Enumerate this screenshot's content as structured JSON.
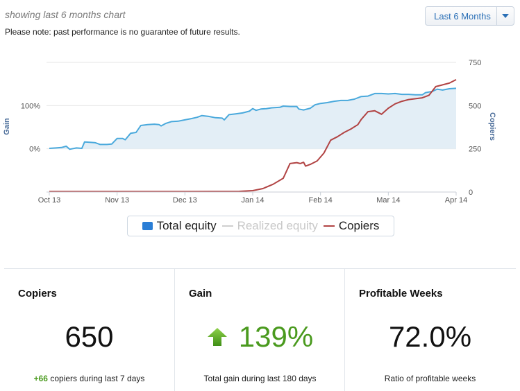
{
  "header": {
    "title": "showing last 6 months chart",
    "note": "Please note: past performance is no guarantee of future results.",
    "range_select": {
      "selected": "Last 6 Months"
    }
  },
  "chart_data": {
    "type": "line",
    "x_ticks": [
      "Oct 13",
      "Nov 13",
      "Dec 13",
      "Jan 14",
      "Feb 14",
      "Mar 14",
      "Apr 14"
    ],
    "x_range": [
      0,
      6
    ],
    "left_axis": {
      "label": "Gain",
      "ticks": [
        "0%",
        "100%"
      ],
      "range": [
        -100,
        200
      ],
      "unit": "%"
    },
    "right_axis": {
      "label": "Copiers",
      "ticks": [
        "0",
        "250",
        "500",
        "750"
      ],
      "range": [
        0,
        750
      ]
    },
    "grid": true,
    "legend": "bottom-center",
    "series": [
      {
        "name": "Total equity",
        "axis": "left",
        "style": "area",
        "color": "#4aa9dc",
        "fill": "#e3eef6",
        "points": [
          [
            0.0,
            1
          ],
          [
            0.1,
            2
          ],
          [
            0.18,
            3
          ],
          [
            0.25,
            6
          ],
          [
            0.3,
            -1
          ],
          [
            0.4,
            2
          ],
          [
            0.48,
            1
          ],
          [
            0.52,
            16
          ],
          [
            0.6,
            15
          ],
          [
            0.68,
            14
          ],
          [
            0.75,
            10
          ],
          [
            0.85,
            10
          ],
          [
            0.92,
            11
          ],
          [
            1.0,
            24
          ],
          [
            1.08,
            24
          ],
          [
            1.12,
            21
          ],
          [
            1.2,
            36
          ],
          [
            1.28,
            38
          ],
          [
            1.35,
            54
          ],
          [
            1.45,
            56
          ],
          [
            1.55,
            57
          ],
          [
            1.62,
            56
          ],
          [
            1.65,
            53
          ],
          [
            1.72,
            59
          ],
          [
            1.8,
            63
          ],
          [
            1.9,
            64
          ],
          [
            2.0,
            67
          ],
          [
            2.1,
            70
          ],
          [
            2.18,
            73
          ],
          [
            2.25,
            77
          ],
          [
            2.35,
            75
          ],
          [
            2.45,
            72
          ],
          [
            2.55,
            71
          ],
          [
            2.58,
            67
          ],
          [
            2.65,
            79
          ],
          [
            2.75,
            81
          ],
          [
            2.85,
            83
          ],
          [
            2.95,
            87
          ],
          [
            3.0,
            93
          ],
          [
            3.05,
            89
          ],
          [
            3.12,
            92
          ],
          [
            3.2,
            93
          ],
          [
            3.28,
            95
          ],
          [
            3.4,
            96
          ],
          [
            3.45,
            99
          ],
          [
            3.55,
            98
          ],
          [
            3.65,
            98
          ],
          [
            3.68,
            92
          ],
          [
            3.75,
            90
          ],
          [
            3.85,
            94
          ],
          [
            3.92,
            102
          ],
          [
            4.0,
            105
          ],
          [
            4.1,
            107
          ],
          [
            4.2,
            110
          ],
          [
            4.3,
            112
          ],
          [
            4.4,
            112
          ],
          [
            4.5,
            115
          ],
          [
            4.6,
            121
          ],
          [
            4.7,
            122
          ],
          [
            4.8,
            128
          ],
          [
            4.9,
            128
          ],
          [
            5.0,
            127
          ],
          [
            5.1,
            128
          ],
          [
            5.2,
            126
          ],
          [
            5.3,
            126
          ],
          [
            5.4,
            125
          ],
          [
            5.5,
            125
          ],
          [
            5.55,
            130
          ],
          [
            5.65,
            133
          ],
          [
            5.72,
            138
          ],
          [
            5.8,
            136
          ],
          [
            5.9,
            139
          ],
          [
            6.0,
            140
          ]
        ]
      },
      {
        "name": "Realized equity",
        "axis": "left",
        "style": "line",
        "color": "#cfcfcf",
        "points": []
      },
      {
        "name": "Copiers",
        "axis": "right",
        "style": "line",
        "color": "#b14343",
        "points": [
          [
            0.0,
            3
          ],
          [
            1.0,
            3
          ],
          [
            2.0,
            3
          ],
          [
            2.8,
            4
          ],
          [
            3.0,
            8
          ],
          [
            3.15,
            20
          ],
          [
            3.3,
            45
          ],
          [
            3.45,
            80
          ],
          [
            3.55,
            165
          ],
          [
            3.65,
            170
          ],
          [
            3.7,
            165
          ],
          [
            3.75,
            172
          ],
          [
            3.78,
            150
          ],
          [
            3.85,
            160
          ],
          [
            3.95,
            180
          ],
          [
            4.05,
            225
          ],
          [
            4.15,
            300
          ],
          [
            4.25,
            320
          ],
          [
            4.35,
            345
          ],
          [
            4.45,
            365
          ],
          [
            4.55,
            390
          ],
          [
            4.6,
            420
          ],
          [
            4.7,
            465
          ],
          [
            4.8,
            470
          ],
          [
            4.9,
            450
          ],
          [
            5.0,
            485
          ],
          [
            5.1,
            510
          ],
          [
            5.2,
            525
          ],
          [
            5.3,
            535
          ],
          [
            5.4,
            540
          ],
          [
            5.5,
            545
          ],
          [
            5.6,
            560
          ],
          [
            5.7,
            610
          ],
          [
            5.8,
            620
          ],
          [
            5.9,
            630
          ],
          [
            6.0,
            650
          ]
        ]
      }
    ]
  },
  "stats": [
    {
      "title": "Copiers",
      "value": "650",
      "delta": "+66",
      "foot": "copiers during last 7 days"
    },
    {
      "title": "Gain",
      "value": "139%",
      "foot": "Total gain during last 180 days",
      "trend_icon": "arrow-up-icon",
      "color": "#4a9a1e"
    },
    {
      "title": "Profitable Weeks",
      "value": "72.0%",
      "foot": "Ratio of profitable weeks"
    }
  ]
}
